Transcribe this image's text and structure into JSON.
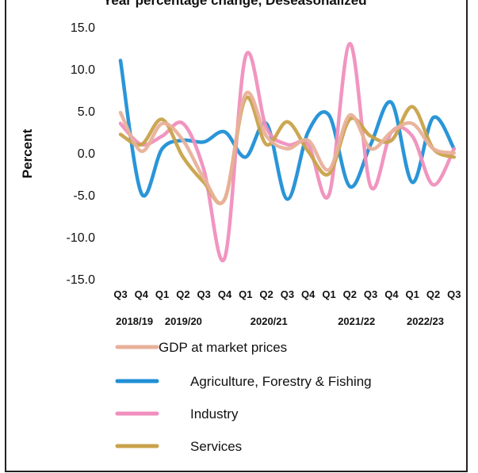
{
  "chart_data": {
    "type": "line",
    "title": "Year percentage change, Deseasonalized",
    "ylabel": "Percent",
    "ylim": [
      -15,
      15
    ],
    "yticks": [
      "15.0",
      "10.0",
      "5.0",
      "0.0",
      "-5.0",
      "-10.0",
      "-15.0"
    ],
    "categories": [
      "Q3",
      "Q4",
      "Q1",
      "Q2",
      "Q3",
      "Q4",
      "Q1",
      "Q2",
      "Q3",
      "Q4",
      "Q1",
      "Q2",
      "Q3",
      "Q4",
      "Q1",
      "Q2",
      "Q3"
    ],
    "year_labels": [
      "2018/19",
      "2019/20",
      "2020/21",
      "2021/22",
      "2022/23"
    ],
    "legend_position": "bottom",
    "series": [
      {
        "name": "GDP at market prices",
        "color": "#e8b19a",
        "values": [
          4.8,
          0.2,
          3.5,
          1.5,
          -3.0,
          -5.5,
          7.0,
          2.0,
          0.5,
          1.5,
          -2.0,
          4.5,
          0.5,
          2.5,
          3.5,
          0.5,
          0.0
        ]
      },
      {
        "name": "Agriculture, Forestry & Fishing",
        "color": "#1f8fd6",
        "values": [
          11.0,
          -4.8,
          0.5,
          1.5,
          1.3,
          2.5,
          -0.5,
          3.5,
          -5.5,
          2.5,
          4.5,
          -4.0,
          1.0,
          6.0,
          -3.5,
          4.2,
          0.5
        ]
      },
      {
        "name": "Industry",
        "color": "#f08fbd",
        "values": [
          3.5,
          1.0,
          2.0,
          3.5,
          -2.0,
          -12.5,
          11.5,
          3.0,
          1.0,
          1.0,
          -5.0,
          13.0,
          -4.0,
          2.5,
          2.0,
          -3.8,
          0.5
        ]
      },
      {
        "name": "Services",
        "color": "#c9a24a",
        "values": [
          2.2,
          1.0,
          4.0,
          -0.5,
          -3.5,
          -5.5,
          6.5,
          1.0,
          3.7,
          0.2,
          -2.5,
          4.0,
          2.0,
          1.5,
          5.5,
          0.5,
          -0.5
        ]
      }
    ]
  }
}
